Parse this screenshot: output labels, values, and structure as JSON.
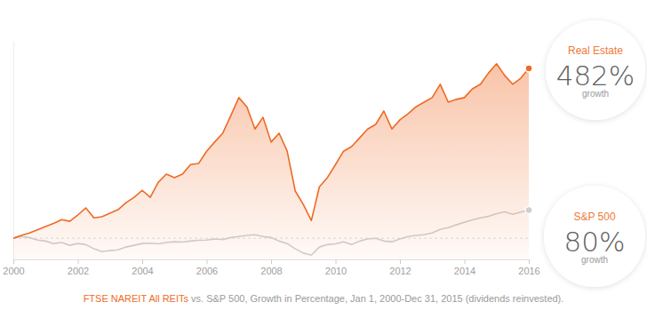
{
  "chart_data": {
    "type": "line",
    "caption": [
      "FTSE NAREIT All REITs",
      " vs. S&P 500, Growth in Percentage, Jan 1, 2000-Dec 31, 2015 (dividends reinvested)."
    ],
    "x": [
      2000,
      2000.25,
      2000.5,
      2000.75,
      2001,
      2001.25,
      2001.5,
      2001.75,
      2002,
      2002.25,
      2002.5,
      2002.75,
      2003,
      2003.25,
      2003.5,
      2003.75,
      2004,
      2004.25,
      2004.5,
      2004.75,
      2005,
      2005.25,
      2005.5,
      2005.75,
      2006,
      2006.25,
      2006.5,
      2006.75,
      2007,
      2007.25,
      2007.5,
      2007.75,
      2008,
      2008.25,
      2008.5,
      2008.75,
      2009,
      2009.25,
      2009.5,
      2009.75,
      2010,
      2010.25,
      2010.5,
      2010.75,
      2011,
      2011.25,
      2011.5,
      2011.75,
      2012,
      2012.25,
      2012.5,
      2012.75,
      2013,
      2013.25,
      2013.5,
      2013.75,
      2014,
      2014.25,
      2014.5,
      2014.75,
      2015,
      2015.25,
      2015.5,
      2015.75,
      2016
    ],
    "xlim": [
      2000,
      2016
    ],
    "xticks": [
      2000,
      2002,
      2004,
      2006,
      2008,
      2010,
      2012,
      2014,
      2016
    ],
    "ylim": [
      -60,
      560
    ],
    "yticks": [
      0
    ],
    "grid": true,
    "tick_labels": "x",
    "data_labels": true,
    "series": [
      {
        "name": "Real Estate",
        "color": "#ee6a25",
        "type": "area",
        "values": [
          0,
          8,
          15,
          24,
          33,
          42,
          53,
          48,
          66,
          86,
          58,
          61,
          71,
          81,
          101,
          116,
          136,
          116,
          159,
          182,
          172,
          182,
          209,
          212,
          247,
          273,
          298,
          348,
          399,
          373,
          310,
          343,
          273,
          298,
          247,
          134,
          96,
          50,
          146,
          172,
          209,
          247,
          260,
          285,
          310,
          323,
          361,
          310,
          336,
          353,
          373,
          386,
          399,
          437,
          386,
          394,
          399,
          424,
          437,
          469,
          495,
          462,
          437,
          454,
          482
        ],
        "value_labels": [
          null,
          null,
          null,
          null,
          null,
          null,
          null,
          null,
          null,
          null,
          null,
          null,
          null,
          null,
          null,
          null,
          null,
          null,
          null,
          null,
          null,
          null,
          null,
          null,
          null,
          null,
          null,
          null,
          null,
          null,
          null,
          null,
          null,
          null,
          null,
          null,
          null,
          null,
          null,
          null,
          null,
          null,
          null,
          null,
          null,
          null,
          null,
          null,
          null,
          null,
          null,
          null,
          null,
          null,
          null,
          null,
          null,
          null,
          null,
          null,
          null,
          null,
          null,
          null,
          "482%"
        ],
        "annotation": "growth"
      },
      {
        "name": "S&P 500",
        "color": "#cfcfcf",
        "type": "line",
        "values": [
          0,
          5,
          2,
          -5,
          -8,
          -15,
          -12,
          -20,
          -15,
          -18,
          -30,
          -38,
          -35,
          -33,
          -25,
          -20,
          -15,
          -14,
          -16,
          -12,
          -10,
          -11,
          -8,
          -6,
          -5,
          -2,
          -4,
          2,
          5,
          8,
          10,
          5,
          2,
          -8,
          -15,
          -30,
          -42,
          -48,
          -25,
          -18,
          -16,
          -10,
          -18,
          -8,
          -2,
          0,
          -8,
          -10,
          -2,
          5,
          8,
          10,
          15,
          25,
          30,
          38,
          45,
          52,
          58,
          62,
          70,
          75,
          68,
          74,
          80
        ],
        "value_labels": [
          null,
          null,
          null,
          null,
          null,
          null,
          null,
          null,
          null,
          null,
          null,
          null,
          null,
          null,
          null,
          null,
          null,
          null,
          null,
          null,
          null,
          null,
          null,
          null,
          null,
          null,
          null,
          null,
          null,
          null,
          null,
          null,
          null,
          null,
          null,
          null,
          null,
          null,
          null,
          null,
          null,
          null,
          null,
          null,
          null,
          null,
          null,
          null,
          null,
          null,
          null,
          null,
          null,
          null,
          null,
          null,
          null,
          null,
          null,
          null,
          null,
          null,
          null,
          null,
          "80%"
        ],
        "annotation": "growth"
      }
    ]
  }
}
